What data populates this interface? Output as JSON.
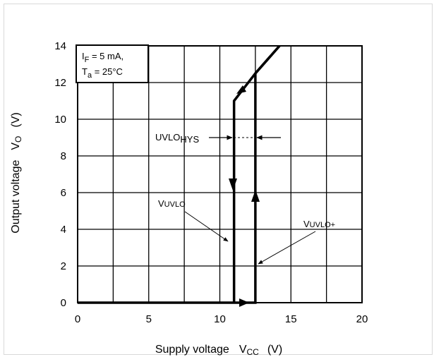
{
  "chart_data": {
    "type": "line",
    "title": "",
    "xlabel": {
      "main": "Supply voltage",
      "symbol": "V",
      "symbol_sub": "CC",
      "unit": "(V)"
    },
    "ylabel": {
      "main": "Output voltage",
      "symbol": "V",
      "symbol_sub": "O",
      "unit": "(V)"
    },
    "xlim": [
      0,
      20
    ],
    "ylim": [
      0,
      14
    ],
    "x_ticks": [
      "0",
      "5",
      "10",
      "15",
      "20"
    ],
    "y_ticks": [
      "0",
      "2",
      "4",
      "6",
      "8",
      "10",
      "12",
      "14"
    ],
    "grid": true,
    "conditions": {
      "line1": {
        "pre": "I",
        "sub": "F",
        "post": " = 5 mA,"
      },
      "line2": {
        "pre": "T",
        "sub": "a",
        "post": " = 25°C"
      }
    },
    "series": [
      {
        "role": "rising",
        "points": [
          [
            0,
            0
          ],
          [
            12.5,
            0
          ],
          [
            12.5,
            12.5
          ],
          [
            14.2,
            14
          ]
        ]
      },
      {
        "role": "falling",
        "points": [
          [
            14.2,
            14
          ],
          [
            12.5,
            12.5
          ],
          [
            11,
            11
          ],
          [
            11,
            0
          ]
        ]
      }
    ],
    "annotations": {
      "uvlo_hys": {
        "main": "UVLO",
        "sub": "HYS"
      },
      "vuvlo_minus": {
        "main": "V",
        "sub": "UVLO"
      },
      "vuvlo_plus": {
        "main": "V",
        "sub": "UVLO+"
      }
    }
  }
}
